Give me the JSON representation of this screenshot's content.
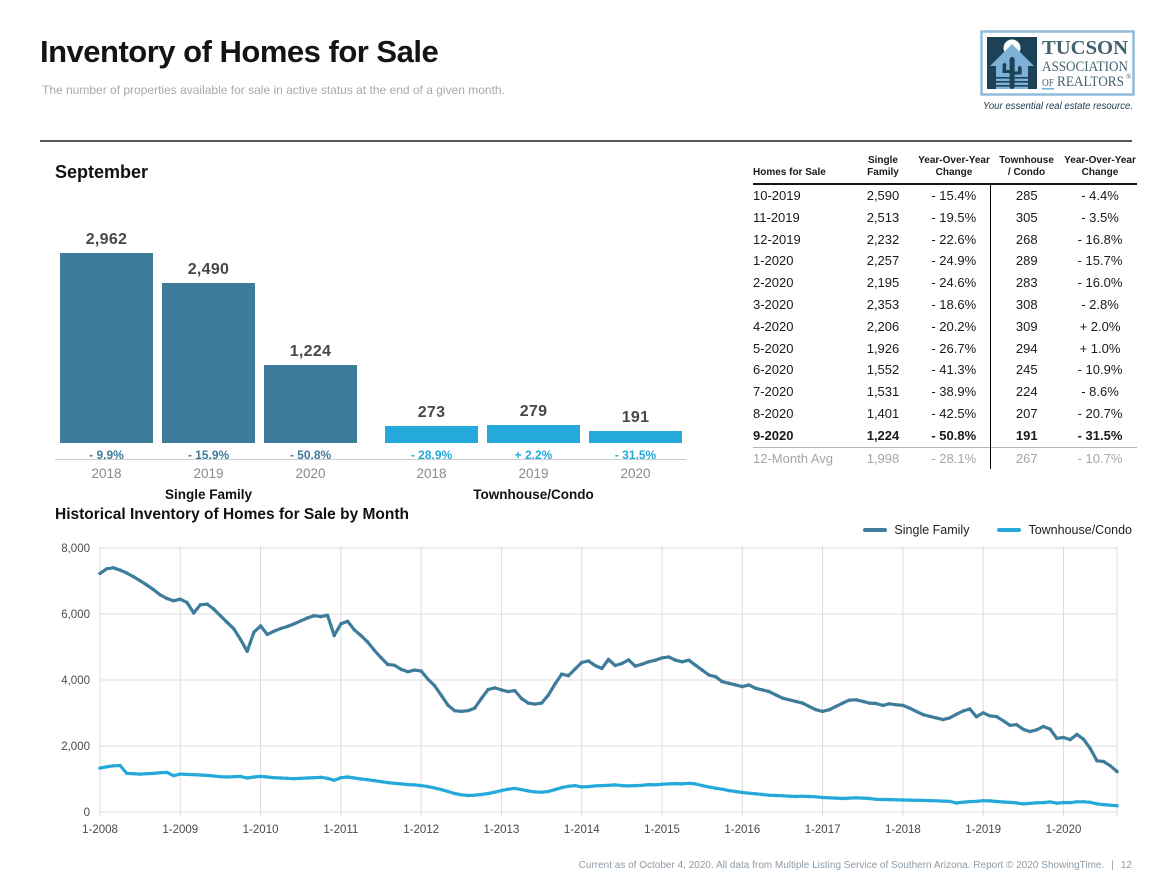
{
  "header": {
    "title": "Inventory of Homes for Sale",
    "subtitle": "The number of properties available for sale in active status at the end of a given month."
  },
  "logo": {
    "line1": "TUCSON",
    "line2": "ASSOCIATION",
    "line3_of": "OF",
    "line3_realtors": "REALTORS",
    "reg_mark": "®",
    "tagline": "Your essential real estate resource.",
    "colors": {
      "border": "#8FBCDB",
      "icon_bg": "#1D4257",
      "house": "#7EB1D8",
      "text": "#44616F",
      "tagline_color": "#16394F"
    }
  },
  "september_section": {
    "heading": "September"
  },
  "table": {
    "headers": [
      [
        "",
        "Homes for Sale"
      ],
      [
        "Single",
        "Family"
      ],
      [
        "Year-Over-Year",
        "Change"
      ],
      [
        "Townhouse",
        "/ Condo"
      ],
      [
        "Year-Over-Year",
        "Change"
      ]
    ],
    "rows": [
      {
        "cells": [
          "10-2019",
          "2,590",
          "- 15.4%",
          "285",
          "- 4.4%"
        ],
        "bold": false
      },
      {
        "cells": [
          "11-2019",
          "2,513",
          "- 19.5%",
          "305",
          "- 3.5%"
        ],
        "bold": false
      },
      {
        "cells": [
          "12-2019",
          "2,232",
          "- 22.6%",
          "268",
          "- 16.8%"
        ],
        "bold": false
      },
      {
        "cells": [
          "1-2020",
          "2,257",
          "- 24.9%",
          "289",
          "- 15.7%"
        ],
        "bold": false
      },
      {
        "cells": [
          "2-2020",
          "2,195",
          "- 24.6%",
          "283",
          "- 16.0%"
        ],
        "bold": false
      },
      {
        "cells": [
          "3-2020",
          "2,353",
          "- 18.6%",
          "308",
          "- 2.8%"
        ],
        "bold": false
      },
      {
        "cells": [
          "4-2020",
          "2,206",
          "- 20.2%",
          "309",
          "+ 2.0%"
        ],
        "bold": false
      },
      {
        "cells": [
          "5-2020",
          "1,926",
          "- 26.7%",
          "294",
          "+ 1.0%"
        ],
        "bold": false
      },
      {
        "cells": [
          "6-2020",
          "1,552",
          "- 41.3%",
          "245",
          "- 10.9%"
        ],
        "bold": false
      },
      {
        "cells": [
          "7-2020",
          "1,531",
          "- 38.9%",
          "224",
          "- 8.6%"
        ],
        "bold": false
      },
      {
        "cells": [
          "8-2020",
          "1,401",
          "- 42.5%",
          "207",
          "- 20.7%"
        ],
        "bold": false
      },
      {
        "cells": [
          "9-2020",
          "1,224",
          "- 50.8%",
          "191",
          "- 31.5%"
        ],
        "bold": true
      }
    ],
    "avg_row": {
      "cells": [
        "12-Month Avg",
        "1,998",
        "- 28.1%",
        "267",
        "- 10.7%"
      ]
    }
  },
  "historical_section": {
    "title": "Historical Inventory of Homes for Sale by Month",
    "legend": [
      {
        "label": "Single Family",
        "color": "#3E7C9C"
      },
      {
        "label": "Townhouse/Condo",
        "color": "#25A9DA"
      }
    ]
  },
  "footer": {
    "text": "Current as of October 4, 2020. All data from Multiple Listing Service of Southern Arizona. Report © 2020 ShowingTime.",
    "separator": "|",
    "page_number": "12"
  },
  "chart_data": [
    {
      "type": "bar",
      "title": "September",
      "ylim": [
        0,
        2962
      ],
      "groups": [
        {
          "label": "Single Family",
          "color": "#3E7C9C",
          "categories": [
            "2018",
            "2019",
            "2020"
          ],
          "values": [
            2962,
            2490,
            1224
          ],
          "value_labels": [
            "2,962",
            "2,490",
            "1,224"
          ],
          "change_labels": [
            "- 9.9%",
            "- 15.9%",
            "- 50.8%"
          ]
        },
        {
          "label": "Townhouse/Condo",
          "color": "#25A9DA",
          "categories": [
            "2018",
            "2019",
            "2020"
          ],
          "values": [
            273,
            279,
            191
          ],
          "value_labels": [
            "273",
            "279",
            "191"
          ],
          "change_labels": [
            "- 28.9%",
            "+ 2.2%",
            "- 31.5%"
          ]
        }
      ]
    },
    {
      "type": "line",
      "title": "Historical Inventory of Homes for Sale by Month",
      "x_start": "1-2008",
      "x_end": "9-2020",
      "months_per_tick": 12,
      "x_tick_labels": [
        "1-2008",
        "1-2009",
        "1-2010",
        "1-2011",
        "1-2012",
        "1-2013",
        "1-2014",
        "1-2015",
        "1-2016",
        "1-2017",
        "1-2018",
        "1-2019",
        "1-2020"
      ],
      "y_tick_labels": [
        "0",
        "2,000",
        "4,000",
        "6,000",
        "8,000"
      ],
      "ylim": [
        0,
        8000
      ],
      "grid": true,
      "legend_position": "top-right",
      "series": [
        {
          "name": "Single Family",
          "color": "#3E7C9C",
          "values": [
            7230,
            7370,
            7400,
            7330,
            7240,
            7130,
            7010,
            6880,
            6740,
            6580,
            6470,
            6400,
            6450,
            6350,
            6030,
            6280,
            6300,
            6150,
            5950,
            5750,
            5550,
            5230,
            4870,
            5450,
            5640,
            5380,
            5480,
            5560,
            5620,
            5700,
            5790,
            5880,
            5950,
            5920,
            5960,
            5350,
            5700,
            5780,
            5520,
            5350,
            5150,
            4900,
            4680,
            4470,
            4450,
            4320,
            4250,
            4300,
            4270,
            4030,
            3830,
            3540,
            3240,
            3070,
            3050,
            3070,
            3150,
            3440,
            3710,
            3760,
            3700,
            3650,
            3680,
            3440,
            3300,
            3270,
            3300,
            3540,
            3880,
            4180,
            4130,
            4330,
            4530,
            4580,
            4440,
            4350,
            4620,
            4440,
            4500,
            4610,
            4420,
            4480,
            4550,
            4600,
            4670,
            4700,
            4600,
            4550,
            4600,
            4450,
            4300,
            4150,
            4100,
            3950,
            3900,
            3850,
            3800,
            3850,
            3750,
            3700,
            3650,
            3550,
            3450,
            3400,
            3350,
            3300,
            3200,
            3100,
            3050,
            3100,
            3200,
            3300,
            3390,
            3400,
            3350,
            3300,
            3287,
            3230,
            3280,
            3250,
            3230,
            3150,
            3050,
            2950,
            2900,
            2850,
            2800,
            2850,
            2962,
            3061,
            3122,
            2884,
            3005,
            2911,
            2891,
            2764,
            2627,
            2644,
            2506,
            2437,
            2490,
            2590,
            2513,
            2232,
            2257,
            2195,
            2353,
            2206,
            1926,
            1552,
            1531,
            1401,
            1224
          ]
        },
        {
          "name": "Townhouse/Condo",
          "color": "#25A9DA",
          "values": [
            1330,
            1370,
            1400,
            1410,
            1170,
            1160,
            1150,
            1160,
            1170,
            1190,
            1200,
            1100,
            1150,
            1140,
            1130,
            1120,
            1110,
            1090,
            1070,
            1060,
            1070,
            1080,
            1030,
            1060,
            1080,
            1060,
            1040,
            1030,
            1020,
            1010,
            1020,
            1030,
            1040,
            1050,
            1020,
            960,
            1040,
            1060,
            1030,
            1000,
            980,
            950,
            920,
            890,
            870,
            850,
            830,
            820,
            800,
            770,
            730,
            680,
            620,
            560,
            520,
            500,
            510,
            530,
            560,
            600,
            650,
            690,
            715,
            680,
            640,
            610,
            600,
            620,
            680,
            740,
            780,
            800,
            760,
            770,
            790,
            800,
            810,
            820,
            800,
            790,
            800,
            810,
            830,
            820,
            840,
            850,
            860,
            850,
            870,
            850,
            800,
            760,
            720,
            690,
            650,
            620,
            590,
            570,
            550,
            530,
            510,
            500,
            490,
            480,
            470,
            480,
            470,
            460,
            440,
            430,
            420,
            410,
            420,
            430,
            420,
            410,
            384,
            380,
            375,
            370,
            365,
            360,
            355,
            350,
            345,
            340,
            330,
            320,
            273,
            298,
            316,
            322,
            343,
            337,
            317,
            303,
            291,
            275,
            245,
            261,
            279,
            285,
            305,
            268,
            289,
            283,
            308,
            309,
            294,
            245,
            224,
            207,
            191
          ]
        }
      ]
    }
  ]
}
